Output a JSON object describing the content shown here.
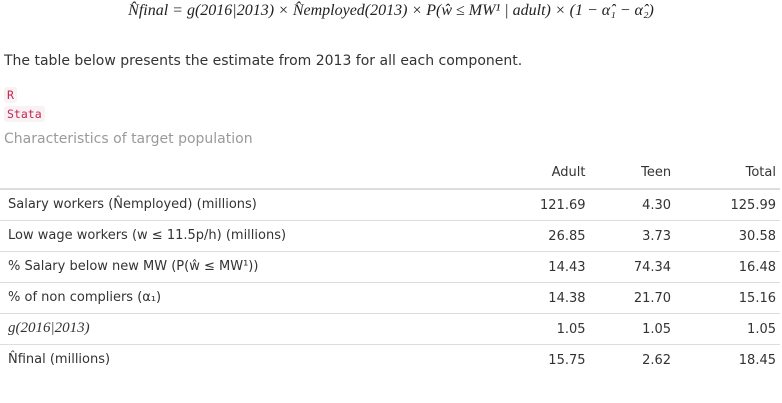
{
  "formula": "N̂final = g(2016|2013) × N̂employed(2013) × P(ŵ ≤ MW¹ | adult) × (1 − α̂₁ − α̂₂)",
  "intro_text": "The table below presents the estimate from 2013 for all each component.",
  "tabs": [
    {
      "label": "R"
    },
    {
      "label": "Stata"
    }
  ],
  "caption": "Characteristics of target population",
  "table": {
    "headers": [
      "",
      "Adult",
      "Teen",
      "Total"
    ],
    "rows": [
      {
        "label": "Salary workers (N̂employed) (millions)",
        "adult": "121.69",
        "teen": "4.30",
        "total": "125.99"
      },
      {
        "label": "Low wage workers (w ≤ 11.5p/h) (millions)",
        "adult": "26.85",
        "teen": "3.73",
        "total": "30.58"
      },
      {
        "label": "% Salary below new MW (P(ŵ ≤ MW¹))",
        "adult": "14.43",
        "teen": "74.34",
        "total": "16.48"
      },
      {
        "label": "% of non compliers (α₁)",
        "adult": "14.38",
        "teen": "21.70",
        "total": "15.16"
      },
      {
        "label": "g(2016|2013)",
        "adult": "1.05",
        "teen": "1.05",
        "total": "1.05"
      },
      {
        "label": "N̂final (millions)",
        "adult": "15.75",
        "teen": "2.62",
        "total": "18.45"
      }
    ]
  }
}
